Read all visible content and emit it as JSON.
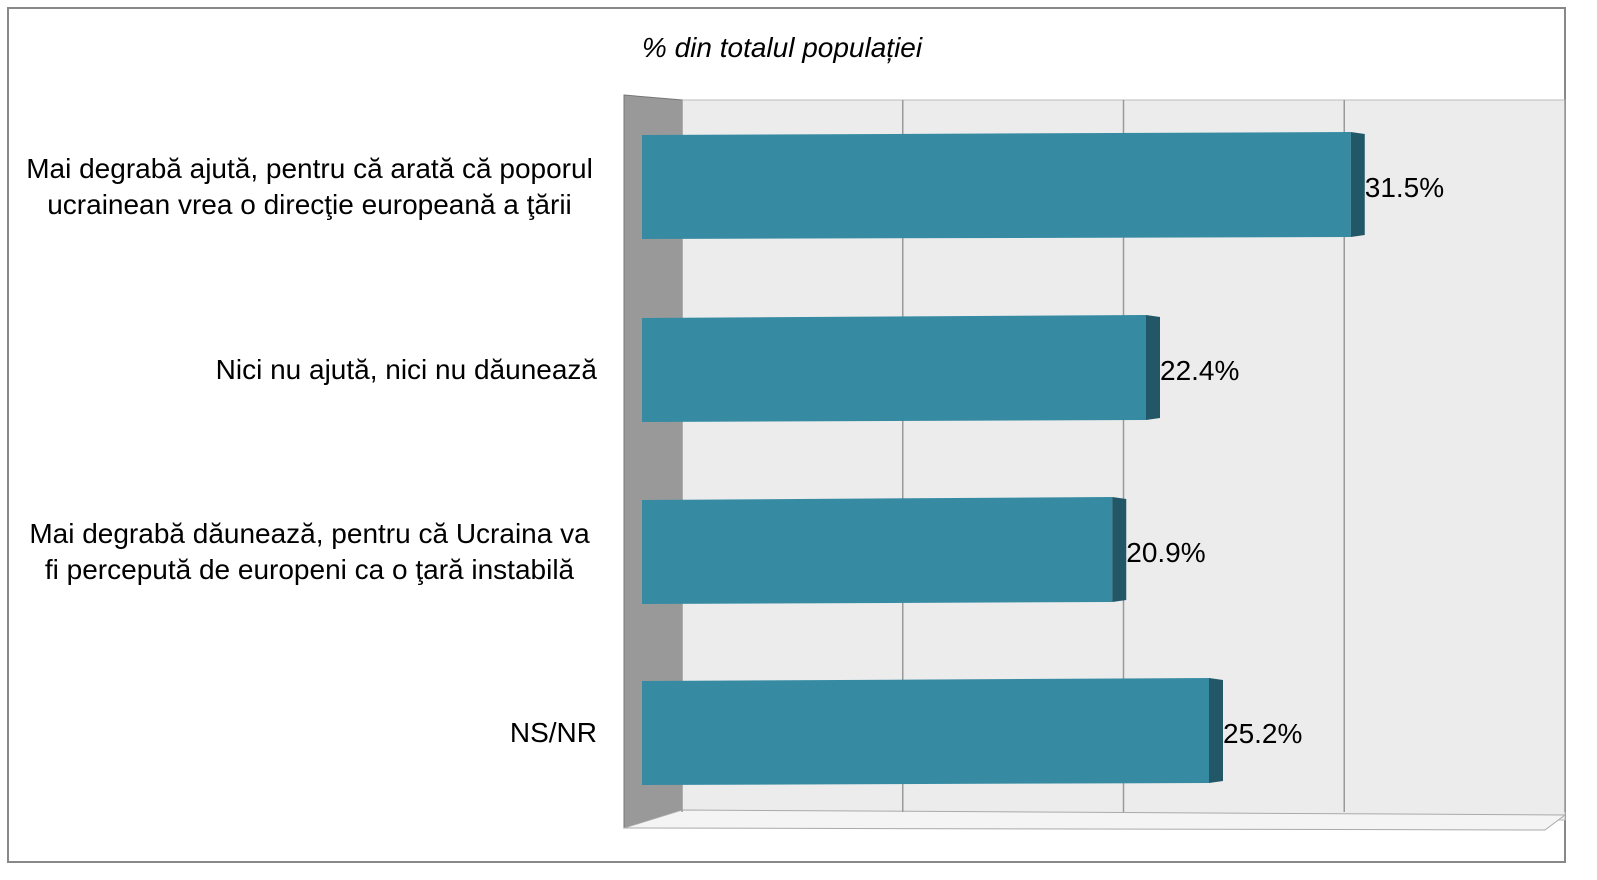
{
  "chart_data": {
    "type": "bar3d_horizontal",
    "title": "% din totalul populației",
    "categories": [
      "Mai degrabă ajută, pentru că arată că poporul ucrainean vrea o direcţie europeană a ţării",
      "Nici nu ajută, nici nu dăunează",
      "Mai degrabă dăunează, pentru că Ucraina va fi percepută de europeni ca o ţară instabilă",
      "NS/NR"
    ],
    "values": [
      31.5,
      22.4,
      20.9,
      25.2
    ],
    "value_labels": [
      "31.5%",
      "22.4%",
      "20.9%",
      "25.2%"
    ],
    "color": "#368ba3",
    "xlim": [
      0,
      40
    ],
    "xticks": [
      0,
      10,
      20,
      30,
      40
    ],
    "grid": true
  }
}
